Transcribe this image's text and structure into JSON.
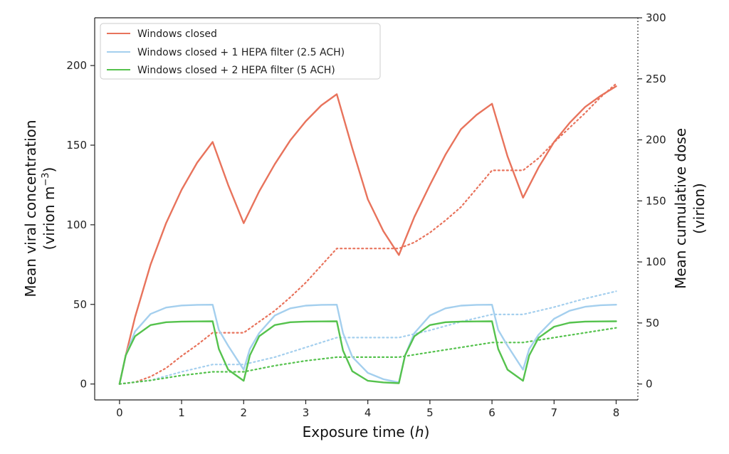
{
  "chart_data": {
    "type": "line",
    "xlabel": "Exposure time (",
    "xlabel_var": "h",
    "xlabel_end": ")",
    "ylabel_line1": "Mean viral concentration",
    "ylabel_line2": "(virion m",
    "ylabel_sup": "−3",
    "ylabel_end": ")",
    "y2label_line1": "Mean cumulative dose",
    "y2label_line2": "(virion)",
    "xlim": [
      -0.4,
      8.35
    ],
    "ylim": [
      -10,
      230
    ],
    "y2lim": [
      -13.04,
      300
    ],
    "xticks": [
      0,
      1,
      2,
      3,
      4,
      5,
      6,
      7,
      8
    ],
    "yticks": [
      0,
      50,
      100,
      150,
      200
    ],
    "y2ticks": [
      0,
      50,
      100,
      150,
      200,
      250,
      300
    ],
    "legend_position": "upper-left",
    "legend": [
      "Windows closed",
      "Windows closed + 1 HEPA filter (2.5 ACH)",
      "Windows closed + 2 HEPA filter (5 ACH)"
    ],
    "occupied_intervals_h": [
      [
        0,
        1.5
      ],
      [
        2,
        3.5
      ],
      [
        4.5,
        6
      ],
      [
        6.5,
        8
      ]
    ],
    "series": [
      {
        "name": "Windows closed",
        "color": "#e8735c",
        "concentration": {
          "x": [
            0,
            0.1,
            0.25,
            0.5,
            0.75,
            1.0,
            1.25,
            1.5,
            1.75,
            2.0,
            2.25,
            2.5,
            2.75,
            3.0,
            3.25,
            3.5,
            3.75,
            4.0,
            4.25,
            4.5,
            4.75,
            5.0,
            5.25,
            5.5,
            5.75,
            6.0,
            6.25,
            6.5,
            6.75,
            7.0,
            7.25,
            7.5,
            7.75,
            8.0
          ],
          "y": [
            0,
            18,
            42,
            75,
            101,
            122,
            139,
            152,
            125,
            101,
            121,
            138,
            153,
            165,
            175,
            182,
            148,
            116,
            96,
            81,
            105,
            125,
            144,
            160,
            169,
            176,
            143,
            117,
            136,
            152,
            164,
            174,
            181,
            187
          ]
        },
        "cumulative_dose": {
          "x": [
            0,
            0.25,
            0.5,
            0.75,
            1.0,
            1.25,
            1.5,
            2.0,
            2.25,
            2.5,
            2.75,
            3.0,
            3.25,
            3.5,
            4.5,
            4.75,
            5.0,
            5.25,
            5.5,
            5.75,
            6.0,
            6.5,
            6.75,
            7.0,
            7.25,
            7.5,
            7.75,
            8.0
          ],
          "y": [
            0,
            1.5,
            6,
            13,
            23,
            32,
            42,
            42,
            51,
            60,
            71,
            83,
            97,
            111,
            111,
            116,
            124,
            134,
            145,
            160,
            175,
            175,
            185,
            198,
            210,
            222,
            235,
            246
          ]
        }
      },
      {
        "name": "Windows closed + 1 HEPA filter (2.5 ACH)",
        "color": "#a4cfee",
        "concentration": {
          "x": [
            0,
            0.1,
            0.25,
            0.5,
            0.75,
            1.0,
            1.25,
            1.5,
            1.6,
            1.75,
            2.0,
            2.1,
            2.25,
            2.5,
            2.75,
            3.0,
            3.25,
            3.5,
            3.6,
            3.75,
            4.0,
            4.25,
            4.5,
            4.6,
            4.75,
            5.0,
            5.25,
            5.5,
            5.75,
            6.0,
            6.1,
            6.25,
            6.5,
            6.6,
            6.75,
            7.0,
            7.25,
            7.5,
            7.75,
            8.0
          ],
          "y": [
            0,
            18,
            33,
            44,
            48,
            49.3,
            49.7,
            49.8,
            34,
            24,
            9,
            22,
            32,
            43,
            47.5,
            49.2,
            49.7,
            49.8,
            32,
            17,
            7,
            3,
            1,
            18,
            32,
            43,
            47.5,
            49.2,
            49.7,
            49.8,
            34,
            24,
            9,
            22,
            31,
            41,
            46,
            48.5,
            49.5,
            49.8
          ]
        },
        "cumulative_dose": {
          "x": [
            0,
            0.5,
            1.0,
            1.5,
            2.0,
            2.5,
            3.0,
            3.5,
            4.5,
            5.0,
            5.5,
            6.0,
            6.5,
            7.0,
            7.5,
            8.0
          ],
          "y": [
            0,
            3,
            10,
            16,
            16,
            22,
            30,
            38,
            38,
            44,
            51,
            57,
            57,
            63,
            70,
            76
          ]
        }
      },
      {
        "name": "Windows closed + 2 HEPA filter (5 ACH)",
        "color": "#55c24d",
        "concentration": {
          "x": [
            0,
            0.1,
            0.25,
            0.5,
            0.75,
            1.0,
            1.25,
            1.5,
            1.6,
            1.75,
            2.0,
            2.1,
            2.25,
            2.5,
            2.75,
            3.0,
            3.25,
            3.5,
            3.6,
            3.75,
            4.0,
            4.25,
            4.5,
            4.6,
            4.75,
            5.0,
            5.25,
            5.5,
            5.75,
            6.0,
            6.1,
            6.25,
            6.5,
            6.6,
            6.75,
            7.0,
            7.25,
            7.5,
            7.75,
            8.0
          ],
          "y": [
            0,
            18,
            30,
            37,
            38.8,
            39.2,
            39.3,
            39.4,
            22,
            9,
            2,
            18,
            30,
            37,
            38.8,
            39.2,
            39.3,
            39.4,
            21,
            8,
            2,
            1,
            0.5,
            18,
            30,
            37,
            38.8,
            39.2,
            39.3,
            39.4,
            22,
            9,
            2,
            18,
            29,
            36,
            38.5,
            39.2,
            39.3,
            39.4
          ]
        },
        "cumulative_dose": {
          "x": [
            0,
            0.5,
            1.0,
            1.5,
            2.0,
            2.5,
            3.0,
            3.5,
            4.5,
            5.0,
            5.5,
            6.0,
            6.5,
            7.0,
            7.5,
            8.0
          ],
          "y": [
            0,
            3,
            7,
            10,
            10,
            15,
            19,
            22,
            22,
            26,
            30,
            34,
            34,
            38,
            42,
            46
          ]
        }
      }
    ]
  }
}
